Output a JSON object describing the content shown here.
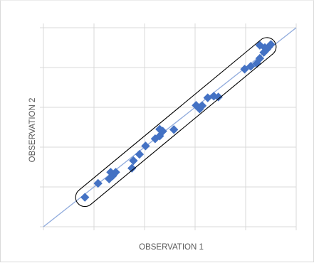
{
  "chart_data": {
    "type": "scatter",
    "title": "",
    "xlabel": "OBSERVATION 1",
    "ylabel": "OBSERVATION 2",
    "xlim": [
      0,
      5
    ],
    "ylim": [
      0,
      5
    ],
    "grid": true,
    "legend": "none",
    "series": [
      {
        "marker": "diamond",
        "color": "#4472C4",
        "points": [
          [
            0.82,
            0.74
          ],
          [
            1.08,
            1.09
          ],
          [
            1.3,
            1.2
          ],
          [
            1.37,
            1.28
          ],
          [
            1.43,
            1.37
          ],
          [
            1.33,
            1.37
          ],
          [
            1.75,
            1.47
          ],
          [
            1.78,
            1.66
          ],
          [
            1.9,
            1.82
          ],
          [
            2.02,
            2.03
          ],
          [
            2.21,
            2.21
          ],
          [
            2.3,
            2.28
          ],
          [
            2.36,
            2.4
          ],
          [
            2.3,
            2.45
          ],
          [
            2.58,
            2.44
          ],
          [
            3.02,
            3.05
          ],
          [
            3.14,
            3.04
          ],
          [
            3.09,
            2.96
          ],
          [
            3.25,
            3.24
          ],
          [
            3.37,
            3.28
          ],
          [
            3.46,
            3.26
          ],
          [
            3.98,
            3.96
          ],
          [
            4.1,
            4.03
          ],
          [
            4.22,
            4.1
          ],
          [
            4.28,
            4.23
          ],
          [
            4.36,
            4.38
          ],
          [
            4.42,
            4.46
          ],
          [
            4.46,
            4.52
          ],
          [
            4.38,
            4.5
          ],
          [
            4.5,
            4.58
          ],
          [
            4.28,
            4.56
          ]
        ]
      }
    ],
    "reference_line": {
      "color": "#8FAADC",
      "from": [
        0,
        0
      ],
      "to": [
        5,
        5
      ]
    },
    "enclosure": {
      "color": "#000000",
      "from": [
        0.82,
        0.74
      ],
      "to": [
        4.42,
        4.52
      ]
    }
  }
}
